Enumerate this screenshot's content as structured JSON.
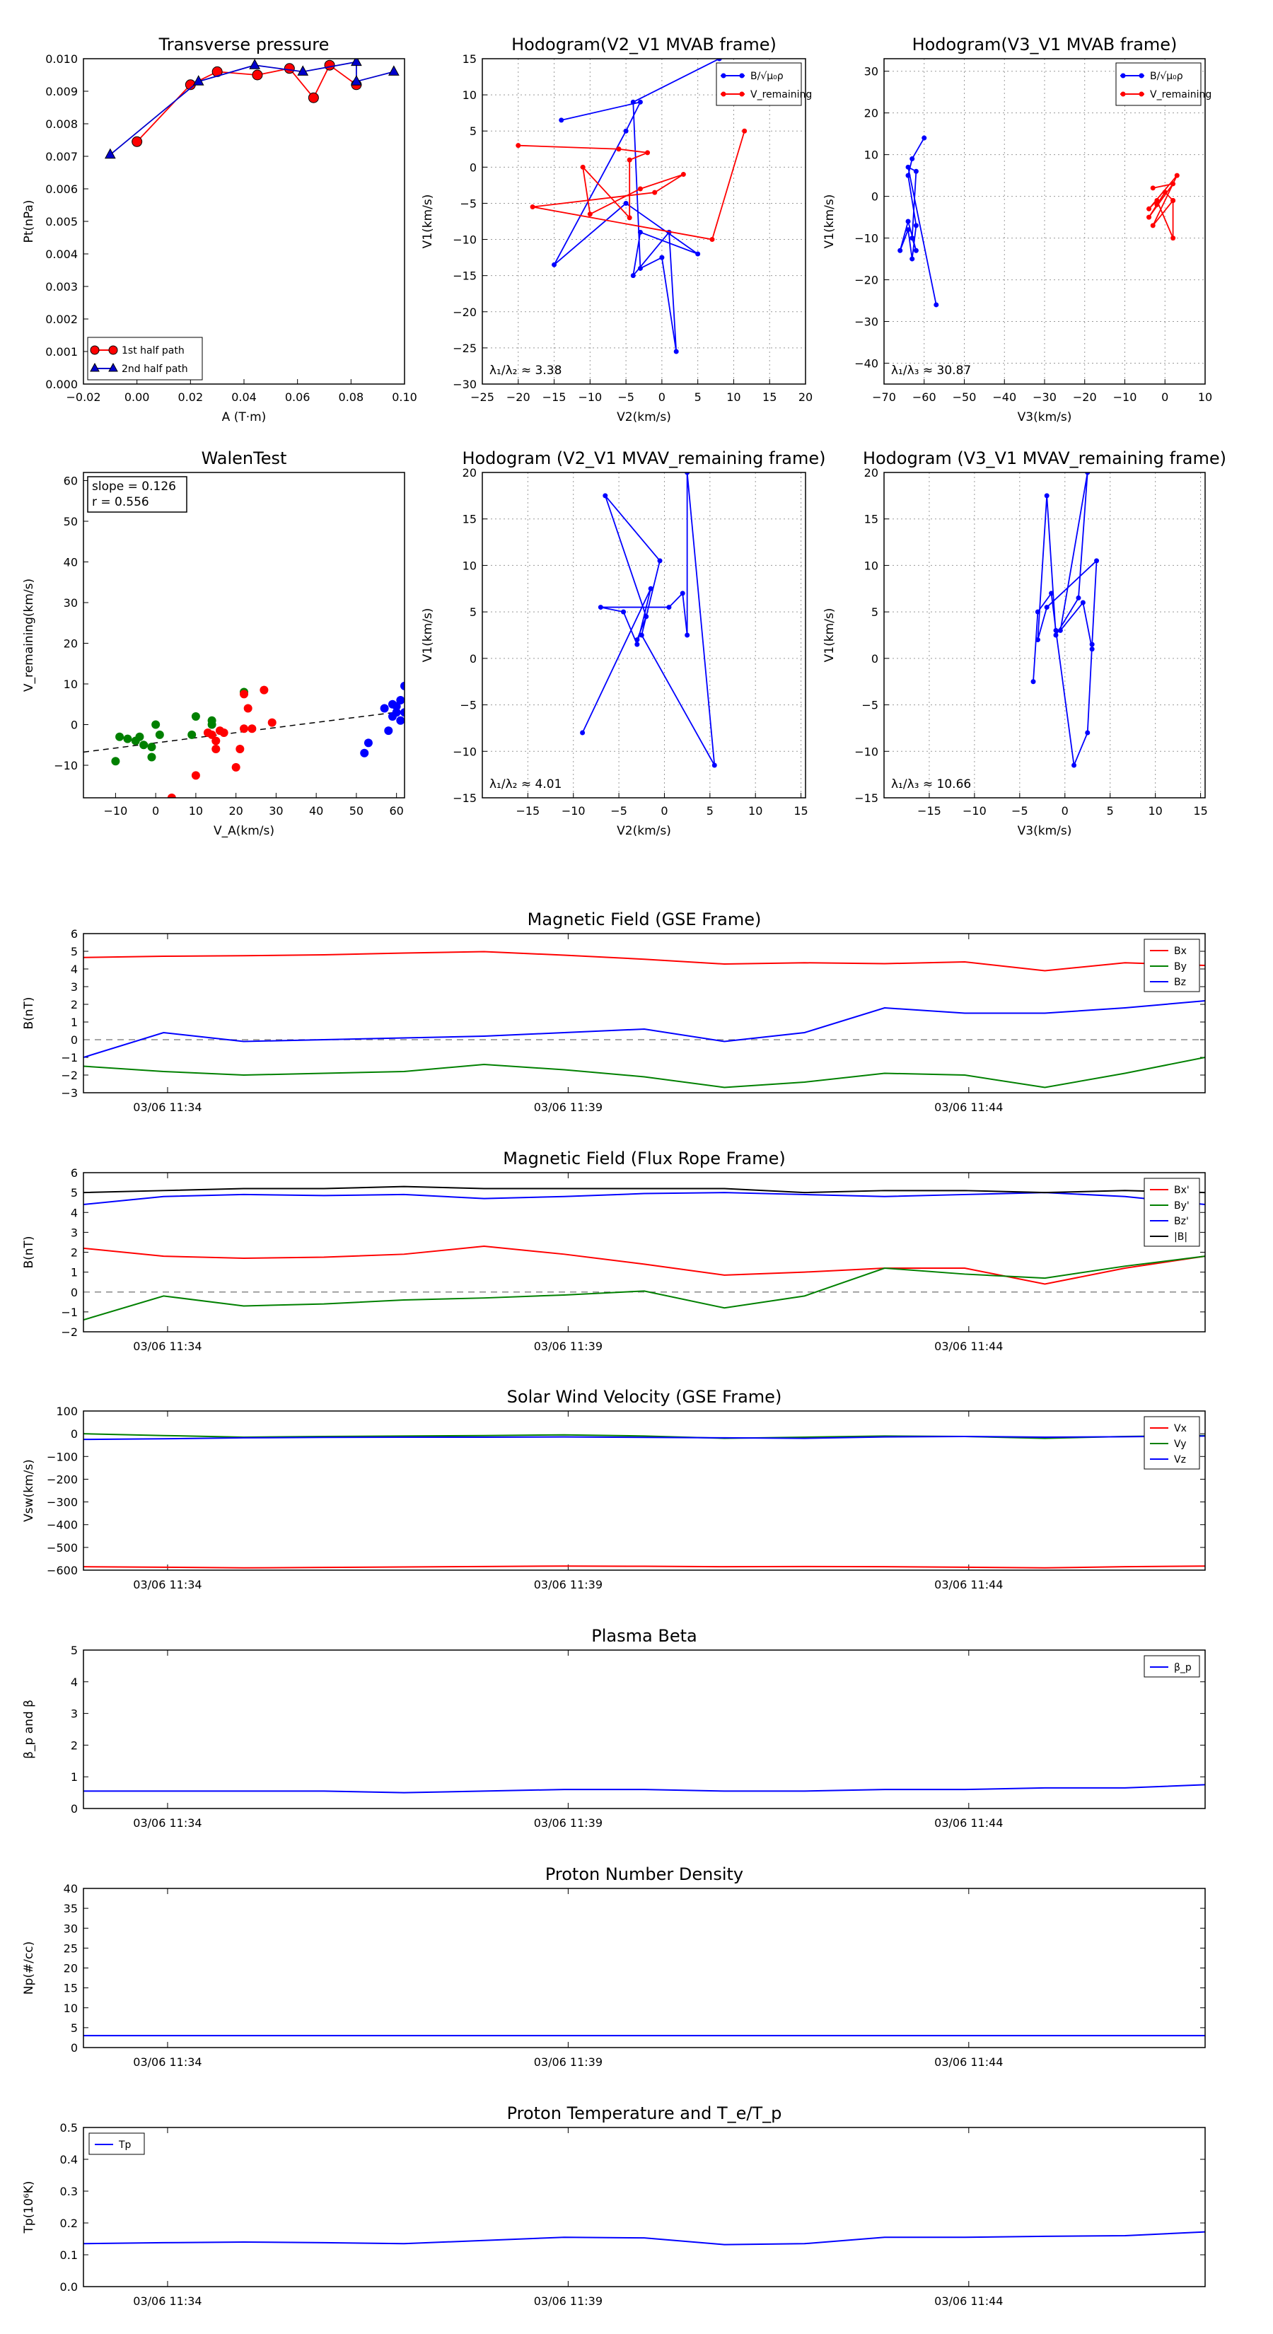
{
  "chart_data": [
    {
      "id": "tp",
      "type": "scatter",
      "title": "Transverse pressure",
      "xlabel": "A (T·m)",
      "ylabel": "Pt(nPa)",
      "xlim": [
        -0.02,
        0.1
      ],
      "ylim": [
        0.0,
        0.01
      ],
      "xticks": [
        "−0.02",
        "0.00",
        "0.02",
        "0.04",
        "0.06",
        "0.08",
        "0.10"
      ],
      "yticks": [
        "0.000",
        "0.001",
        "0.002",
        "0.003",
        "0.004",
        "0.005",
        "0.006",
        "0.007",
        "0.008",
        "0.009",
        "0.010"
      ],
      "legend_position": "lower-left",
      "series": [
        {
          "name": "1st half path",
          "color": "#ff0000",
          "marker": "circle",
          "x": [
            0.0,
            0.02,
            0.03,
            0.045,
            0.057,
            0.066,
            0.072,
            0.082
          ],
          "y": [
            0.00745,
            0.0092,
            0.0096,
            0.0095,
            0.0097,
            0.0088,
            0.0098,
            0.0092
          ]
        },
        {
          "name": "2nd half path",
          "color": "#0000cc",
          "marker": "triangle",
          "x": [
            -0.01,
            0.023,
            0.044,
            0.062,
            0.082,
            0.082,
            0.096
          ],
          "y": [
            0.00705,
            0.0093,
            0.0098,
            0.0096,
            0.0099,
            0.0093,
            0.0096
          ]
        }
      ]
    },
    {
      "id": "h1",
      "type": "line",
      "title": "Hodogram(V2_V1 MVAB frame)",
      "xlabel": "V2(km/s)",
      "ylabel": "V1(km/s)",
      "xlim": [
        -25,
        20
      ],
      "ylim": [
        -30,
        15
      ],
      "xticks": [
        "−25",
        "−20",
        "−15",
        "−10",
        "−5",
        "0",
        "5",
        "10",
        "15",
        "20"
      ],
      "yticks": [
        "−30",
        "−25",
        "−20",
        "−15",
        "−10",
        "−5",
        "0",
        "5",
        "10",
        "15"
      ],
      "annotation": "λ₁/λ₂ ≈ 3.38",
      "legend_position": "upper-right",
      "series": [
        {
          "name": "B/√μ₀ρ",
          "color": "#0000ff",
          "x": [
            -14,
            -3,
            -5,
            -15,
            -5,
            5,
            -3,
            -4,
            1,
            2,
            0,
            -3,
            -4,
            8
          ],
          "y": [
            6.5,
            9,
            5,
            -13.5,
            -5,
            -12,
            -9,
            -15,
            -9,
            -25.5,
            -12.5,
            -14,
            9,
            15
          ]
        },
        {
          "name": "V_remaining",
          "color": "#ff0000",
          "x": [
            -20,
            -6,
            -2,
            -4.5,
            -4.5,
            -11,
            -10,
            -3,
            3,
            -1,
            -18,
            7,
            11.5
          ],
          "y": [
            3,
            2.5,
            2,
            1,
            -7,
            0,
            -6.5,
            -3,
            -1,
            -3.5,
            -5.5,
            -10,
            5
          ]
        }
      ]
    },
    {
      "id": "h2",
      "type": "line",
      "title": "Hodogram(V3_V1 MVAB frame)",
      "xlabel": "V3(km/s)",
      "ylabel": "V1(km/s)",
      "xlim": [
        -70,
        10
      ],
      "ylim": [
        -45,
        33
      ],
      "xticks": [
        "−70",
        "−60",
        "−50",
        "−40",
        "−30",
        "−20",
        "−10",
        "0",
        "10"
      ],
      "yticks": [
        "−40",
        "−30",
        "−20",
        "−10",
        "0",
        "10",
        "20",
        "30"
      ],
      "annotation": "λ₁/λ₃ ≈ 30.87",
      "legend_position": "upper-right",
      "series": [
        {
          "name": "B/√μ₀ρ",
          "color": "#0000ff",
          "x": [
            -60,
            -63,
            -64,
            -62,
            -63,
            -64,
            -66,
            -64,
            -62,
            -63,
            -62,
            -64,
            -57
          ],
          "y": [
            14,
            9,
            5,
            -7,
            -15,
            -8,
            -13,
            -6,
            -13,
            -10,
            6,
            7,
            -26
          ]
        },
        {
          "name": "V_remaining",
          "color": "#ff0000",
          "x": [
            -3,
            2,
            -4,
            -2,
            0,
            2,
            -3,
            3,
            -4,
            -2,
            2,
            2
          ],
          "y": [
            2,
            3,
            -5,
            -2,
            1,
            -1,
            -7,
            5,
            -3,
            -1,
            -10,
            -1
          ]
        }
      ]
    },
    {
      "id": "walen",
      "type": "scatter",
      "title": "WalenTest",
      "xlabel": "V_A(km/s)",
      "ylabel": "V_remaining(km/s)",
      "xlim": [
        -18,
        62
      ],
      "ylim": [
        -18,
        62
      ],
      "xticks": [
        "−10",
        "0",
        "10",
        "20",
        "30",
        "40",
        "50",
        "60"
      ],
      "yticks": [
        "−10",
        "0",
        "10",
        "20",
        "30",
        "40",
        "50",
        "60"
      ],
      "stats": [
        "slope = 0.126",
        "r = 0.556"
      ],
      "fit": {
        "slope": 0.126,
        "intercept": -4.5
      },
      "series": [
        {
          "name": "",
          "color": "#008000",
          "x": [
            -10,
            -9,
            -7,
            -5,
            -4,
            -3,
            -1,
            -1,
            0,
            1,
            9,
            10,
            14,
            14,
            22
          ],
          "y": [
            -9,
            -3,
            -3.5,
            -4,
            -3,
            -5,
            -8,
            -5.5,
            0,
            -2.5,
            -2.5,
            2,
            0,
            1,
            8
          ]
        },
        {
          "name": "",
          "color": "#ff0000",
          "x": [
            4,
            10,
            13,
            14,
            15,
            15,
            16,
            17,
            20,
            21,
            22,
            22,
            23,
            24,
            27,
            29
          ],
          "y": [
            -18,
            -12.5,
            -2,
            -2.5,
            -6,
            -4,
            -1.5,
            -2,
            -10.5,
            -6,
            -1,
            7.5,
            4,
            -1,
            8.5,
            0.5
          ]
        },
        {
          "name": "",
          "color": "#0000ff",
          "x": [
            52,
            53,
            57,
            58,
            59,
            59,
            60,
            60,
            61,
            61,
            62,
            62
          ],
          "y": [
            -7,
            -4.5,
            4,
            -1.5,
            2,
            5,
            3,
            4.5,
            6,
            1,
            9.5,
            3
          ]
        }
      ]
    },
    {
      "id": "h3",
      "type": "line",
      "title": "Hodogram (V2_V1 MVAV_remaining frame)",
      "xlabel": "V2(km/s)",
      "ylabel": "V1(km/s)",
      "xlim": [
        -20,
        15.5
      ],
      "ylim": [
        -15,
        20
      ],
      "xticks": [
        "−15",
        "−10",
        "−5",
        "0",
        "5",
        "10",
        "15"
      ],
      "yticks": [
        "−15",
        "−10",
        "−5",
        "0",
        "5",
        "10",
        "15",
        "20"
      ],
      "annotation": "λ₁/λ₂ ≈ 4.01",
      "series": [
        {
          "name": "",
          "color": "#0000ff",
          "x": [
            -9,
            -1.5,
            -3,
            -4.5,
            -7,
            0.5,
            2,
            2.5,
            2.5,
            5.5,
            -2.5,
            -0.5,
            -6.5,
            -2,
            -3
          ],
          "y": [
            -8,
            7.5,
            1.5,
            5,
            5.5,
            5.5,
            7,
            2.5,
            20,
            -11.5,
            2.5,
            10.5,
            17.5,
            4.5,
            2
          ]
        }
      ]
    },
    {
      "id": "h4",
      "type": "line",
      "title": "Hodogram (V3_V1 MVAV_remaining frame)",
      "xlabel": "V3(km/s)",
      "ylabel": "V1(km/s)",
      "xlim": [
        -20,
        15.5
      ],
      "ylim": [
        -15,
        20
      ],
      "xticks": [
        "−15",
        "−10",
        "−5",
        "0",
        "5",
        "10",
        "15"
      ],
      "yticks": [
        "−15",
        "−10",
        "−5",
        "0",
        "5",
        "10",
        "15",
        "20"
      ],
      "annotation": "λ₁/λ₃ ≈ 10.66",
      "series": [
        {
          "name": "",
          "color": "#0000ff",
          "x": [
            -3.5,
            -3,
            -1.5,
            -1,
            1,
            2.5,
            3,
            3.5,
            -2,
            -3,
            -2,
            -1,
            1.5,
            2.5,
            -0.5,
            2,
            3
          ],
          "y": [
            -2.5,
            5,
            7,
            3,
            -11.5,
            -8,
            1.5,
            10.5,
            5.5,
            2,
            17.5,
            2.5,
            6.5,
            20,
            3,
            6,
            1
          ]
        }
      ]
    },
    {
      "id": "mag_gse",
      "type": "line",
      "title": "Magnetic Field (GSE Frame)",
      "ylabel": "B(nT)",
      "ylim": [
        -3,
        6
      ],
      "yticks": [
        "−3",
        "−2",
        "−1",
        "0",
        "1",
        "2",
        "3",
        "4",
        "5",
        "6"
      ],
      "xtick_labels": [
        "03/06 11:34",
        "03/06 11:39",
        "03/06 11:44"
      ],
      "xtick_pos": [
        4,
        9,
        14
      ],
      "x_count": 15,
      "zero_line": true,
      "legend_position": "upper-right",
      "series": [
        {
          "name": "Bx",
          "color": "#ff0000",
          "values": [
            4.65,
            4.72,
            4.75,
            4.8,
            4.9,
            4.98,
            4.78,
            4.55,
            4.28,
            4.35,
            4.3,
            4.4,
            3.9,
            4.35,
            4.2
          ]
        },
        {
          "name": "By",
          "color": "#008000",
          "values": [
            -1.5,
            -1.8,
            -2.0,
            -1.9,
            -1.8,
            -1.4,
            -1.7,
            -2.1,
            -2.7,
            -2.4,
            -1.9,
            -2.0,
            -2.7,
            -1.9,
            -1.0
          ]
        },
        {
          "name": "Bz",
          "color": "#0000ff",
          "values": [
            -1.0,
            0.4,
            -0.1,
            0.0,
            0.1,
            0.2,
            0.4,
            0.6,
            -0.1,
            0.4,
            1.8,
            1.5,
            1.5,
            1.8,
            2.2
          ]
        }
      ]
    },
    {
      "id": "mag_fr",
      "type": "line",
      "title": "Magnetic Field (Flux Rope Frame)",
      "ylabel": "B(nT)",
      "ylim": [
        -2,
        6
      ],
      "yticks": [
        "−2",
        "−1",
        "0",
        "1",
        "2",
        "3",
        "4",
        "5",
        "6"
      ],
      "xtick_labels": [
        "03/06 11:34",
        "03/06 11:39",
        "03/06 11:44"
      ],
      "xtick_pos": [
        4,
        9,
        14
      ],
      "x_count": 15,
      "zero_line": true,
      "legend_position": "upper-right",
      "series": [
        {
          "name": "Bx'",
          "color": "#ff0000",
          "values": [
            2.2,
            1.8,
            1.7,
            1.75,
            1.9,
            2.3,
            1.9,
            1.4,
            0.85,
            1.0,
            1.2,
            1.2,
            0.4,
            1.2,
            1.8
          ]
        },
        {
          "name": "By'",
          "color": "#008000",
          "values": [
            -1.4,
            -0.2,
            -0.7,
            -0.6,
            -0.4,
            -0.3,
            -0.15,
            0.05,
            -0.8,
            -0.2,
            1.2,
            0.9,
            0.7,
            1.3,
            1.8
          ]
        },
        {
          "name": "Bz'",
          "color": "#0000ff",
          "values": [
            4.4,
            4.8,
            4.9,
            4.85,
            4.9,
            4.7,
            4.8,
            4.95,
            5.0,
            4.9,
            4.8,
            4.9,
            5.0,
            4.8,
            4.4
          ]
        },
        {
          "name": "|B|",
          "color": "#000000",
          "values": [
            5.0,
            5.1,
            5.2,
            5.2,
            5.3,
            5.2,
            5.2,
            5.2,
            5.2,
            5.0,
            5.1,
            5.1,
            5.0,
            5.1,
            5.0
          ]
        }
      ]
    },
    {
      "id": "vsw",
      "type": "line",
      "title": "Solar Wind Velocity (GSE Frame)",
      "ylabel": "Vsw(km/s)",
      "ylim": [
        -600,
        100
      ],
      "yticks": [
        "−600",
        "−500",
        "−400",
        "−300",
        "−200",
        "−100",
        "0",
        "100"
      ],
      "xtick_labels": [
        "03/06 11:34",
        "03/06 11:39",
        "03/06 11:44"
      ],
      "xtick_pos": [
        4,
        9,
        14
      ],
      "x_count": 15,
      "legend_position": "upper-right",
      "series": [
        {
          "name": "Vx",
          "color": "#ff0000",
          "values": [
            -585,
            -587,
            -590,
            -588,
            -586,
            -584,
            -582,
            -583,
            -585,
            -584,
            -585,
            -587,
            -590,
            -585,
            -582
          ]
        },
        {
          "name": "Vy",
          "color": "#008000",
          "values": [
            0,
            -8,
            -15,
            -12,
            -10,
            -8,
            -5,
            -10,
            -20,
            -15,
            -10,
            -12,
            -20,
            -12,
            -8
          ]
        },
        {
          "name": "Vz",
          "color": "#0000ff",
          "values": [
            -25,
            -22,
            -18,
            -16,
            -15,
            -15,
            -14,
            -16,
            -18,
            -20,
            -14,
            -12,
            -15,
            -13,
            -10
          ]
        }
      ]
    },
    {
      "id": "beta",
      "type": "line",
      "title": "Plasma Beta",
      "ylabel": "β_p and β",
      "ylim": [
        0,
        5
      ],
      "yticks": [
        "0",
        "1",
        "2",
        "3",
        "4",
        "5"
      ],
      "xtick_labels": [
        "03/06 11:34",
        "03/06 11:39",
        "03/06 11:44"
      ],
      "xtick_pos": [
        4,
        9,
        14
      ],
      "x_count": 15,
      "legend_position": "upper-right",
      "series": [
        {
          "name": "β_p",
          "color": "#0000ff",
          "values": [
            0.55,
            0.55,
            0.55,
            0.55,
            0.5,
            0.55,
            0.6,
            0.6,
            0.55,
            0.55,
            0.6,
            0.6,
            0.65,
            0.65,
            0.75
          ]
        }
      ]
    },
    {
      "id": "np",
      "type": "line",
      "title": "Proton Number Density",
      "ylabel": "Np(#/cc)",
      "ylim": [
        0,
        40
      ],
      "yticks": [
        "0",
        "5",
        "10",
        "15",
        "20",
        "25",
        "30",
        "35",
        "40"
      ],
      "xtick_labels": [
        "03/06 11:34",
        "03/06 11:39",
        "03/06 11:44"
      ],
      "xtick_pos": [
        4,
        9,
        14
      ],
      "x_count": 15,
      "series": [
        {
          "name": "",
          "color": "#0000ff",
          "values": [
            3,
            3,
            3,
            3,
            3,
            3,
            3,
            3,
            3,
            3,
            3,
            3,
            3,
            3,
            3
          ]
        }
      ]
    },
    {
      "id": "tp_temp",
      "type": "line",
      "title": "Proton Temperature and T_e/T_p",
      "ylabel": "Tp(10⁶K)",
      "ylim": [
        0,
        0.5
      ],
      "yticks": [
        "0.0",
        "0.1",
        "0.2",
        "0.3",
        "0.4",
        "0.5"
      ],
      "xtick_labels": [
        "03/06 11:34",
        "03/06 11:39",
        "03/06 11:44"
      ],
      "xtick_pos": [
        4,
        9,
        14
      ],
      "x_count": 15,
      "legend_position": "upper-left",
      "series": [
        {
          "name": "Tp",
          "color": "#0000ff",
          "values": [
            0.135,
            0.138,
            0.14,
            0.138,
            0.135,
            0.145,
            0.155,
            0.153,
            0.132,
            0.135,
            0.155,
            0.155,
            0.158,
            0.16,
            0.172
          ]
        }
      ]
    }
  ]
}
